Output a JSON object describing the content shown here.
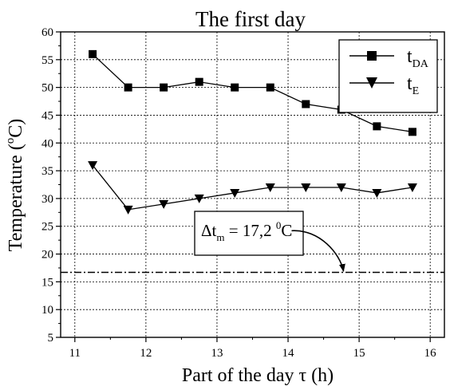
{
  "chart_data": {
    "type": "line",
    "title": "The first day",
    "xlabel": {
      "main": "Part of the day ",
      "symbol": "τ",
      "unit": " (h)"
    },
    "ylabel": {
      "main": "Temperature (",
      "sup": "o",
      "unit": "C)"
    },
    "xlim": [
      10.8,
      16.2
    ],
    "ylim": [
      5,
      60
    ],
    "x_ticks": [
      11,
      12,
      13,
      14,
      15,
      16
    ],
    "y_ticks": [
      5,
      10,
      15,
      20,
      25,
      30,
      35,
      40,
      45,
      50,
      55,
      60
    ],
    "grid": true,
    "legend_position": "top-right",
    "series": [
      {
        "name": "t_DA",
        "label_main": "t",
        "label_sub": "DA",
        "marker": "square",
        "color": "#000000",
        "x": [
          11.25,
          11.75,
          12.25,
          12.75,
          13.25,
          13.75,
          14.25,
          14.75,
          15.25,
          15.75
        ],
        "y": [
          56,
          50,
          50,
          51,
          50,
          50,
          47,
          46,
          43,
          42
        ]
      },
      {
        "name": "t_E",
        "label_main": "t",
        "label_sub": "E",
        "marker": "triangle-down",
        "color": "#000000",
        "x": [
          11.25,
          11.75,
          12.25,
          12.75,
          13.25,
          13.75,
          14.25,
          14.75,
          15.25,
          15.75
        ],
        "y": [
          36,
          28,
          29,
          30,
          31,
          32,
          32,
          32,
          31,
          32
        ]
      }
    ],
    "reference_line": {
      "y": 16.7,
      "style": "dash-dot",
      "x_range": [
        10.8,
        16.2
      ]
    },
    "annotation": {
      "delta": "Δ",
      "t": "t",
      "sub": "m",
      "eq": " = 17,2 ",
      "sup": "0",
      "unit": "C",
      "arrow_target": {
        "x": 14.78,
        "y": 16.9
      },
      "arrow_from": {
        "x": 14.05,
        "y": 24.2
      }
    }
  }
}
